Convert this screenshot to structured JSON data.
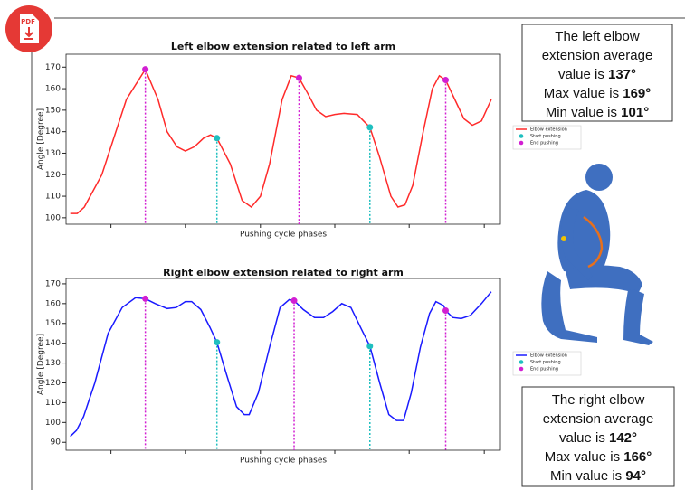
{
  "pdf_icon": "PDF",
  "chart_data": [
    {
      "type": "line",
      "title": "Left elbow extension related to left arm",
      "xlabel": "Pushing cycle phases",
      "ylabel": "Angle [Degree]",
      "xlim": [
        -0.6,
        61.3
      ],
      "ylim": [
        97,
        176
      ],
      "yticks": [
        100,
        110,
        120,
        130,
        140,
        150,
        160,
        170
      ],
      "xticks": [
        5.8,
        16.4,
        27.1,
        37.7,
        48.3,
        59
      ],
      "series": [
        {
          "name": "Elbow extension",
          "color": "#ff2a2a",
          "mode": "line",
          "x": [
            0,
            1,
            2,
            4.5,
            8,
            10.7,
            12.5,
            13.8,
            15.2,
            16.4,
            17.7,
            19,
            20,
            20.9,
            22.8,
            24.5,
            25.8,
            27.1,
            28.4,
            30.2,
            31.5,
            32.6,
            33.8,
            35.1,
            36.4,
            37.7,
            39,
            40.9,
            41.8,
            42.7,
            44.1,
            45.7,
            46.7,
            47.7,
            48.8,
            50.3,
            51.6,
            52.6,
            53.5,
            54.8,
            56.1,
            57.3,
            58.6,
            60
          ],
          "values": [
            102,
            102,
            105,
            120,
            155,
            169,
            155,
            140,
            133,
            131,
            133,
            137,
            138.5,
            137,
            125,
            108,
            105,
            110,
            125,
            155,
            166,
            165,
            158,
            150,
            147,
            148,
            148.5,
            148,
            145,
            142,
            128,
            110,
            105,
            106,
            115,
            140,
            160,
            166,
            164,
            155,
            146,
            143,
            145,
            155
          ]
        },
        {
          "name": "Start pushing",
          "color": "#1fbfbf",
          "mode": "marker",
          "x": [
            20.9,
            42.7
          ],
          "values": [
            137,
            142
          ]
        },
        {
          "name": "End pushing",
          "color": "#d21fd2",
          "mode": "marker",
          "x": [
            10.7,
            32.6,
            53.5
          ],
          "values": [
            169,
            165,
            164
          ]
        }
      ]
    },
    {
      "type": "line",
      "title": "Right elbow extension related to right arm",
      "xlabel": "Pushing cycle phases",
      "ylabel": "Angle [Degree]",
      "xlim": [
        -0.6,
        61.3
      ],
      "ylim": [
        86,
        172.7
      ],
      "yticks": [
        90,
        100,
        110,
        120,
        130,
        140,
        150,
        160,
        170
      ],
      "xticks": [
        5.8,
        16.4,
        27.1,
        37.7,
        48.3,
        59
      ],
      "series": [
        {
          "name": "Elbow extension",
          "color": "#1a1aff",
          "mode": "line",
          "x": [
            0,
            0.9,
            1.9,
            3.5,
            5.4,
            7.4,
            9.3,
            10.7,
            12.1,
            13.8,
            15.1,
            16.4,
            17.3,
            18.6,
            19.9,
            20.9,
            22.2,
            23.7,
            24.8,
            25.5,
            26.8,
            28.4,
            29.9,
            31.2,
            31.9,
            33.2,
            34.8,
            36.1,
            37.4,
            38.7,
            40,
            41.5,
            42.7,
            44.1,
            45.4,
            46.5,
            47.5,
            48.6,
            49.9,
            51.2,
            52.1,
            53.2,
            53.5,
            54.5,
            55.7,
            57,
            58.6,
            60
          ],
          "values": [
            93,
            96,
            103,
            120,
            145,
            158,
            163,
            162.5,
            160,
            157.5,
            158,
            161,
            161,
            157,
            148,
            140.5,
            125,
            108,
            104,
            104,
            115,
            138,
            158,
            162,
            161.5,
            157,
            153,
            153,
            156,
            160,
            158,
            147,
            138.5,
            120,
            104,
            101,
            101,
            115,
            138,
            155,
            161,
            159,
            156.5,
            153,
            152.5,
            154,
            160,
            166
          ]
        },
        {
          "name": "Start pushing",
          "color": "#1fbfbf",
          "mode": "marker",
          "x": [
            20.9,
            42.7
          ],
          "values": [
            140.5,
            138.5
          ]
        },
        {
          "name": "End pushing",
          "color": "#d21fd2",
          "mode": "marker",
          "x": [
            10.7,
            31.9,
            53.5
          ],
          "values": [
            162.5,
            161.5,
            156.5
          ]
        }
      ]
    }
  ],
  "left_summary": {
    "lines": [
      [
        "The left elbow"
      ],
      [
        "extension average"
      ],
      [
        "value is ",
        "137°"
      ],
      [
        "Max value is ",
        "169°"
      ],
      [
        "Min value is ",
        "101°"
      ]
    ]
  },
  "right_summary": {
    "lines": [
      [
        "The right elbow"
      ],
      [
        "extension average"
      ],
      [
        "value is ",
        "142°"
      ],
      [
        "Max value is ",
        "166°"
      ],
      [
        "Min value is ",
        "94°"
      ]
    ]
  }
}
